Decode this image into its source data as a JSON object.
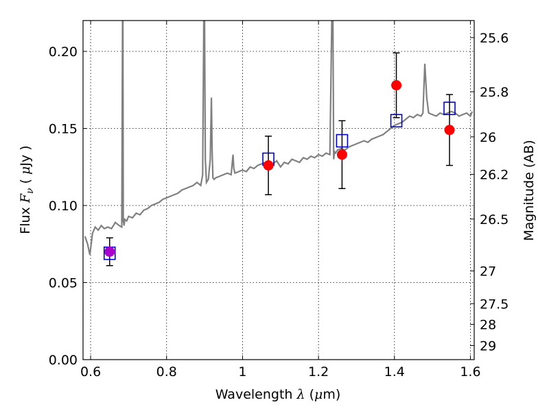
{
  "chart_data": {
    "type": "scatter",
    "xlabel": {
      "prefix": "Wavelength  ",
      "symbol": "λ",
      "unit_open": " (",
      "unit_mu": "μ",
      "unit_rest": "m)"
    },
    "ylabel": {
      "prefix": "Flux  ",
      "symbol": "F",
      "subscript": "ν",
      "unit_open": "  ( ",
      "unit_mu": "μ",
      "unit_rest": "Jy )"
    },
    "y2label": "Magnitude (AB)",
    "xlim": [
      0.58,
      1.61
    ],
    "ylim": [
      0.0,
      0.22
    ],
    "grid": true,
    "x_ticks": [
      {
        "value": 0.6,
        "label": "0.6"
      },
      {
        "value": 0.8,
        "label": "0.8"
      },
      {
        "value": 1.0,
        "label": "1"
      },
      {
        "value": 1.2,
        "label": "1.2"
      },
      {
        "value": 1.4,
        "label": "1.4"
      },
      {
        "value": 1.6,
        "label": "1.6"
      }
    ],
    "y_ticks": [
      {
        "value": 0.0,
        "label": "0.00"
      },
      {
        "value": 0.05,
        "label": "0.05"
      },
      {
        "value": 0.1,
        "label": "0.10"
      },
      {
        "value": 0.15,
        "label": "0.15"
      },
      {
        "value": 0.2,
        "label": "0.20"
      }
    ],
    "y2_ticks": [
      {
        "mag": 25.6,
        "label": "25.6"
      },
      {
        "mag": 25.8,
        "label": "25.8"
      },
      {
        "mag": 26.0,
        "label": "26"
      },
      {
        "mag": 26.2,
        "label": "26.2"
      },
      {
        "mag": 26.5,
        "label": "26.5"
      },
      {
        "mag": 27.0,
        "label": "27"
      },
      {
        "mag": 27.5,
        "label": "27.5"
      },
      {
        "mag": 28.0,
        "label": "28"
      },
      {
        "mag": 29.0,
        "label": "29"
      }
    ],
    "colors": {
      "spectrum": "#808080",
      "observed": "#ff0000",
      "model": "#0000cc",
      "overlap": "#aa00cc",
      "errorbar": "#000000"
    },
    "series": [
      {
        "type": "line",
        "x": [
          0.585,
          0.592,
          0.598,
          0.605,
          0.612,
          0.62,
          0.628,
          0.636,
          0.645,
          0.655,
          0.665,
          0.675,
          0.682,
          0.684,
          0.685,
          0.686,
          0.688,
          0.69,
          0.695,
          0.7,
          0.71,
          0.72,
          0.73,
          0.74,
          0.75,
          0.76,
          0.77,
          0.78,
          0.79,
          0.8,
          0.81,
          0.82,
          0.83,
          0.84,
          0.85,
          0.86,
          0.87,
          0.88,
          0.89,
          0.895,
          0.898,
          0.9,
          0.902,
          0.905,
          0.91,
          0.915,
          0.918,
          0.92,
          0.922,
          0.925,
          0.93,
          0.94,
          0.95,
          0.96,
          0.97,
          0.975,
          0.977,
          0.98,
          0.99,
          1.0,
          1.01,
          1.02,
          1.03,
          1.04,
          1.05,
          1.06,
          1.07,
          1.08,
          1.09,
          1.1,
          1.11,
          1.12,
          1.13,
          1.14,
          1.15,
          1.16,
          1.17,
          1.18,
          1.19,
          1.2,
          1.21,
          1.22,
          1.23,
          1.235,
          1.238,
          1.24,
          1.242,
          1.245,
          1.25,
          1.26,
          1.27,
          1.28,
          1.29,
          1.3,
          1.31,
          1.32,
          1.33,
          1.34,
          1.35,
          1.36,
          1.37,
          1.38,
          1.39,
          1.4,
          1.41,
          1.42,
          1.43,
          1.44,
          1.45,
          1.46,
          1.47,
          1.475,
          1.48,
          1.485,
          1.49,
          1.5,
          1.51,
          1.52,
          1.53,
          1.54,
          1.55,
          1.56,
          1.57,
          1.58,
          1.59,
          1.6,
          1.605
        ],
        "y": [
          0.08,
          0.075,
          0.068,
          0.082,
          0.086,
          0.084,
          0.087,
          0.085,
          0.086,
          0.085,
          0.089,
          0.087,
          0.086,
          0.22,
          0.22,
          0.09,
          0.087,
          0.091,
          0.09,
          0.093,
          0.092,
          0.095,
          0.094,
          0.097,
          0.098,
          0.1,
          0.101,
          0.102,
          0.104,
          0.105,
          0.106,
          0.107,
          0.108,
          0.11,
          0.111,
          0.112,
          0.113,
          0.115,
          0.113,
          0.12,
          0.22,
          0.22,
          0.13,
          0.115,
          0.117,
          0.13,
          0.17,
          0.135,
          0.118,
          0.117,
          0.118,
          0.119,
          0.12,
          0.121,
          0.12,
          0.133,
          0.124,
          0.121,
          0.122,
          0.123,
          0.122,
          0.125,
          0.124,
          0.126,
          0.127,
          0.128,
          0.126,
          0.127,
          0.129,
          0.125,
          0.128,
          0.127,
          0.13,
          0.129,
          0.128,
          0.131,
          0.13,
          0.132,
          0.131,
          0.133,
          0.132,
          0.134,
          0.133,
          0.22,
          0.22,
          0.13,
          0.135,
          0.134,
          0.136,
          0.137,
          0.136,
          0.138,
          0.139,
          0.14,
          0.141,
          0.142,
          0.141,
          0.143,
          0.144,
          0.145,
          0.146,
          0.148,
          0.15,
          0.152,
          0.153,
          0.154,
          0.156,
          0.158,
          0.157,
          0.159,
          0.158,
          0.16,
          0.192,
          0.17,
          0.16,
          0.159,
          0.158,
          0.16,
          0.159,
          0.16,
          0.161,
          0.16,
          0.158,
          0.159,
          0.16,
          0.158,
          0.161
        ]
      },
      {
        "type": "scatter",
        "marker": "circle",
        "x": [
          0.65,
          1.068,
          1.262,
          1.405,
          1.545
        ],
        "y": [
          0.07,
          0.126,
          0.133,
          0.178,
          0.149
        ],
        "yerr": [
          0.009,
          0.019,
          0.022,
          0.021,
          0.023
        ]
      },
      {
        "type": "scatter",
        "marker": "square",
        "x": [
          0.65,
          1.068,
          1.262,
          1.405,
          1.545
        ],
        "y": [
          0.069,
          0.13,
          0.142,
          0.155,
          0.163
        ]
      }
    ]
  }
}
